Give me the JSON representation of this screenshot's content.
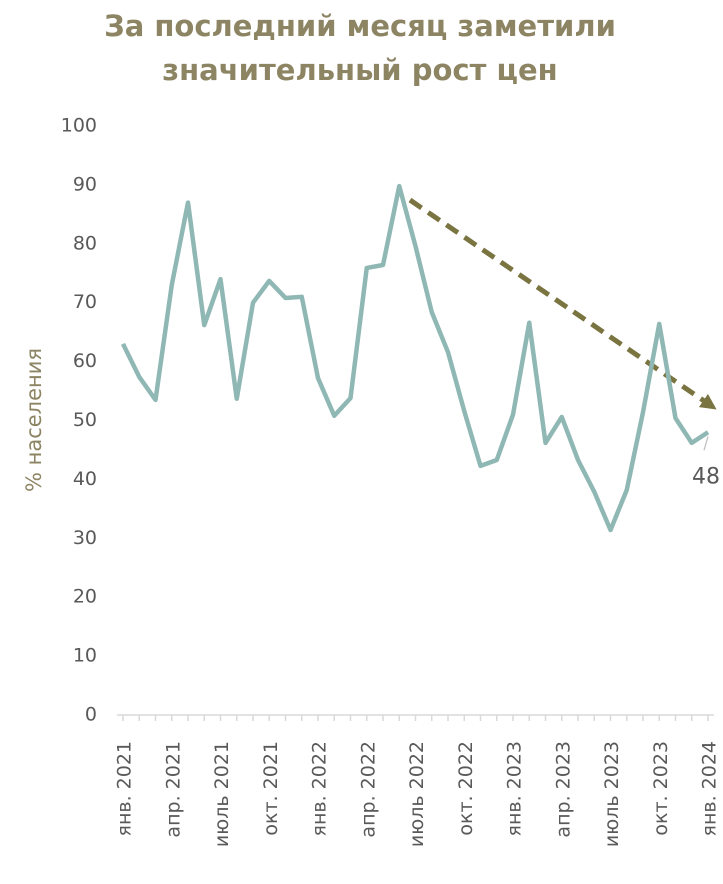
{
  "chart_data": {
    "type": "line",
    "title": [
      "За последний месяц заметили",
      "значительный рост цен"
    ],
    "y_label": "% населения",
    "categories": [
      "янв. 2021",
      null,
      null,
      "апр. 2021",
      null,
      null,
      "июль 2021",
      null,
      null,
      "окт. 2021",
      null,
      null,
      "янв. 2022",
      null,
      null,
      "апр. 2022",
      null,
      null,
      "июль 2022",
      null,
      null,
      "окт. 2022",
      null,
      null,
      "янв. 2023",
      null,
      null,
      "апр. 2023",
      null,
      null,
      "июль 2023",
      null,
      null,
      "окт. 2023",
      null,
      null,
      "янв. 2024"
    ],
    "series": [
      {
        "color": "#8fb8b4",
        "values": [
          63,
          57.4,
          53.5,
          73,
          87,
          66.2,
          74,
          53.7,
          70,
          73.7,
          70.8,
          71,
          57.2,
          50.8,
          53.8,
          75.9,
          76.4,
          89.8,
          79.6,
          68.4,
          61.6,
          51.6,
          42.3,
          43.3,
          51,
          66.6,
          46.2,
          50.6,
          43.3,
          37.9,
          31.4,
          38.2,
          51.4,
          66.4,
          50.4,
          46.2,
          48
        ]
      }
    ],
    "ylim": [
      0,
      100
    ],
    "yticks": [
      0,
      10,
      20,
      30,
      40,
      50,
      60,
      70,
      80,
      90,
      100
    ],
    "trend_color": "#7a7440"
  }
}
